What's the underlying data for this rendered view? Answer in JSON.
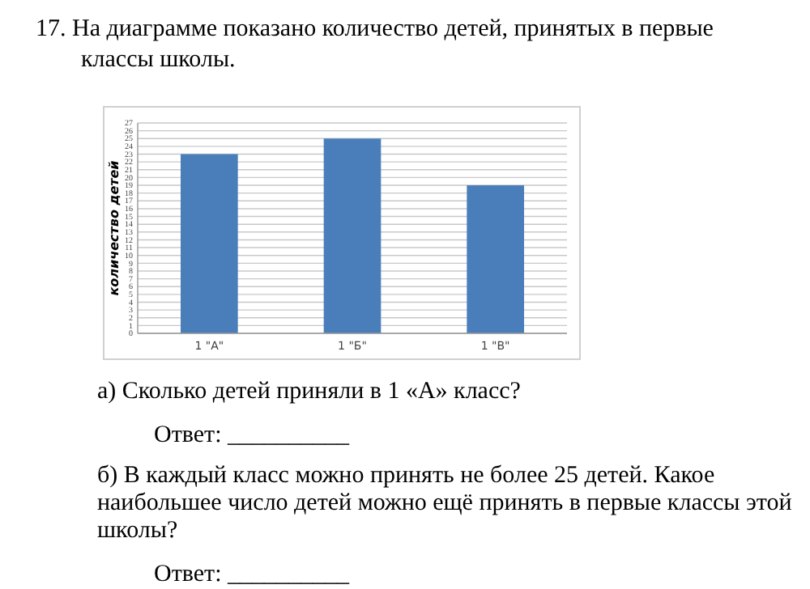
{
  "chart_data": {
    "type": "bar",
    "title": "17. На диаграмме показано количество детей, принятых в первые классы школы.",
    "ylabel": "количество детей",
    "categories": [
      "1 \"А\"",
      "1 \"Б\"",
      "1 \"В\""
    ],
    "values": [
      23,
      25,
      19
    ],
    "color": "#4a7ebb",
    "ylim": [
      0,
      27
    ],
    "yticks": [
      0,
      1,
      2,
      3,
      4,
      5,
      6,
      7,
      8,
      9,
      10,
      11,
      12,
      13,
      14,
      15,
      16,
      17,
      18,
      19,
      20,
      21,
      22,
      23,
      24,
      25,
      26,
      27
    ],
    "grid": "y",
    "annotations": [
      "а) Сколько детей приняли в 1 «А» класс?",
      "Ответ: __________",
      "б) В каждый класс можно принять не более 25 детей. Какое наибольшее число детей можно ещё принять в первые классы этой школы?",
      "Ответ: __________"
    ]
  }
}
